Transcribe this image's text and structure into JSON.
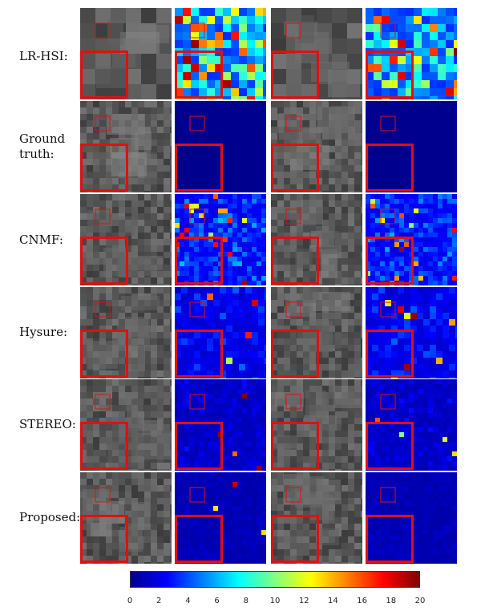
{
  "rows": [
    {
      "label_lines": [
        "LR-HSI:"
      ],
      "style": "lr"
    },
    {
      "label_lines": [
        "Ground",
        "truth:"
      ],
      "style": "gt"
    },
    {
      "label_lines": [
        "CNMF:"
      ],
      "style": "cnmf"
    },
    {
      "label_lines": [
        "Hysure:"
      ],
      "style": "hysure"
    },
    {
      "label_lines": [
        "STEREO:"
      ],
      "style": "stereo"
    },
    {
      "label_lines": [
        "Proposed:"
      ],
      "style": "proposed"
    }
  ],
  "columns": [
    "image",
    "error-map",
    "image",
    "error-map"
  ],
  "colorbar": {
    "min": 0,
    "max": 20,
    "tick_labels": [
      "0",
      "2",
      "4",
      "6",
      "8",
      "10",
      "12",
      "14",
      "16",
      "18",
      "20"
    ],
    "colormap": [
      "#00008f",
      "#0000ff",
      "#0080ff",
      "#00ffff",
      "#80ff80",
      "#ffff00",
      "#ff8000",
      "#ff0000",
      "#800000"
    ]
  },
  "highlight_color": "#e01010"
}
